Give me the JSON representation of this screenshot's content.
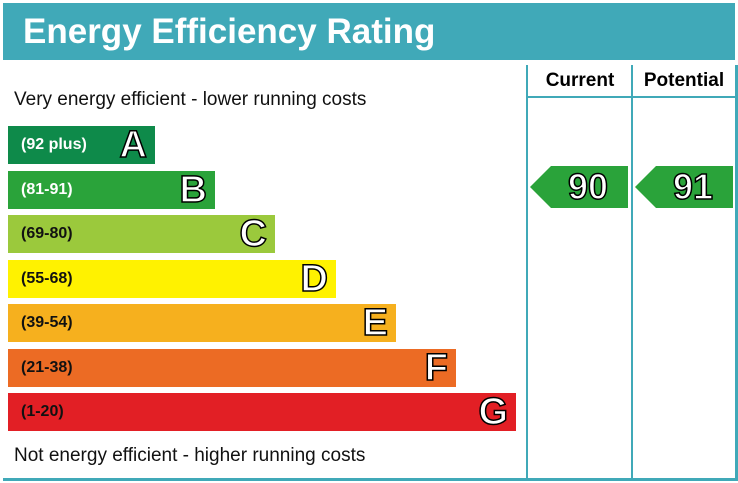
{
  "title": "Energy Efficiency Rating",
  "columns": {
    "current": "Current",
    "potential": "Potential"
  },
  "top_note": "Very energy efficient - lower running costs",
  "bottom_note": "Not energy efficient - higher running costs",
  "chart_data": {
    "type": "bar",
    "bands": [
      {
        "letter": "A",
        "range": "(92 plus)",
        "color": "#0e8a4a",
        "text_color": "#ffffff"
      },
      {
        "letter": "B",
        "range": "(81-91)",
        "color": "#2aa33a",
        "text_color": "#ffffff"
      },
      {
        "letter": "C",
        "range": "(69-80)",
        "color": "#9bc93c",
        "text_color": "#111111"
      },
      {
        "letter": "D",
        "range": "(55-68)",
        "color": "#fff200",
        "text_color": "#111111"
      },
      {
        "letter": "E",
        "range": "(39-54)",
        "color": "#f6b01e",
        "text_color": "#111111"
      },
      {
        "letter": "F",
        "range": "(21-38)",
        "color": "#ec6b24",
        "text_color": "#111111"
      },
      {
        "letter": "G",
        "range": "(1-20)",
        "color": "#e21f25",
        "text_color": "#111111"
      }
    ],
    "current": {
      "value": "90",
      "band": "B",
      "color": "#2aa33a"
    },
    "potential": {
      "value": "91",
      "band": "B",
      "color": "#2aa33a"
    }
  }
}
